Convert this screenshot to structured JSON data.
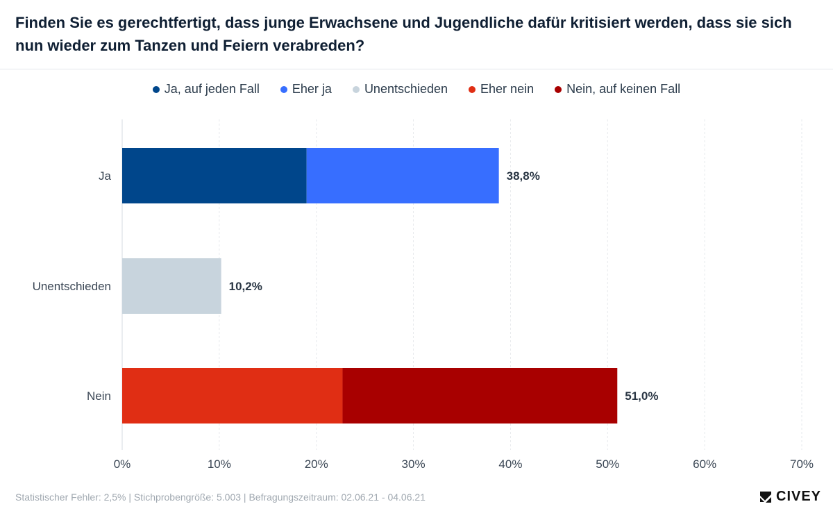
{
  "title": "Finden Sie es gerechtfertigt, dass junge Erwachsene und Jugendliche dafür kritisiert werden, dass sie sich nun wieder zum Tanzen und Feiern verabreden?",
  "legend": [
    {
      "label": "Ja, auf jeden Fall",
      "color": "#00468b"
    },
    {
      "label": "Eher ja",
      "color": "#376eff"
    },
    {
      "label": "Unentschieden",
      "color": "#c8d4dd"
    },
    {
      "label": "Eher nein",
      "color": "#e02e14"
    },
    {
      "label": "Nein, auf keinen Fall",
      "color": "#a80000"
    }
  ],
  "chart_data": {
    "type": "bar",
    "orientation": "horizontal",
    "stacked": true,
    "categories": [
      "Ja",
      "Unentschieden",
      "Nein"
    ],
    "series": [
      {
        "name": "Ja, auf jeden Fall",
        "color": "#00468b",
        "values": [
          19.0,
          0,
          0
        ]
      },
      {
        "name": "Eher ja",
        "color": "#376eff",
        "values": [
          19.8,
          0,
          0
        ]
      },
      {
        "name": "Unentschieden",
        "color": "#c8d4dd",
        "values": [
          0,
          10.2,
          0
        ]
      },
      {
        "name": "Eher nein",
        "color": "#e02e14",
        "values": [
          0,
          0,
          22.7
        ]
      },
      {
        "name": "Nein, auf keinen Fall",
        "color": "#a80000",
        "values": [
          0,
          0,
          28.3
        ]
      }
    ],
    "totals": [
      "38,8%",
      "10,2%",
      "51,0%"
    ],
    "xlim": [
      0,
      70
    ],
    "xticks": [
      0,
      10,
      20,
      30,
      40,
      50,
      60,
      70
    ],
    "xtick_labels": [
      "0%",
      "10%",
      "20%",
      "30%",
      "40%",
      "50%",
      "60%",
      "70%"
    ],
    "grid": true,
    "legend_position": "top-center"
  },
  "footer": "Statistischer Fehler: 2,5% | Stichprobengröße: 5.003 | Befragungszeitraum: 02.06.21 - 04.06.21",
  "brand": "CIVEY"
}
